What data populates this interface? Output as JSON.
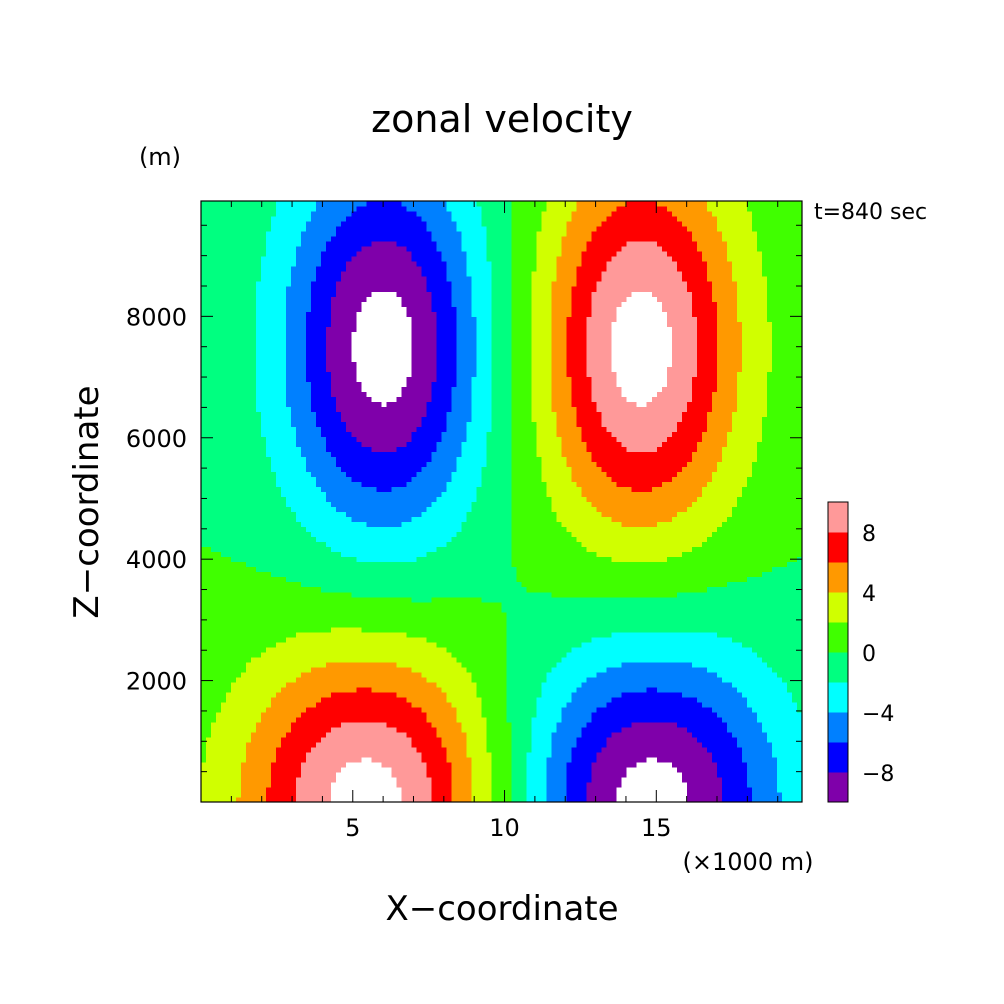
{
  "chart_data": {
    "type": "heatmap",
    "subtype": "filled-contour",
    "title": "zonal velocity",
    "annotation": "t=840 sec",
    "xlabel": "X−coordinate",
    "xunit": "(×1000 m)",
    "ylabel": "Z−coordinate",
    "yunit": "(m)",
    "xlim": [
      0,
      19.8
    ],
    "ylim": [
      0,
      9900
    ],
    "xticks": [
      5,
      10,
      15
    ],
    "yticks": [
      2000,
      4000,
      6000,
      8000
    ],
    "x_tick_labels": [
      "5",
      "10",
      "15"
    ],
    "y_tick_labels": [
      "2000",
      "4000",
      "6000",
      "8000"
    ],
    "color_levels": [
      -10,
      -8,
      -6,
      -4,
      -2,
      0,
      2,
      4,
      6,
      8,
      10
    ],
    "colorbar_tick_labels": [
      "8",
      "4",
      "0",
      "−4",
      "−8"
    ],
    "colorbar_tick_values": [
      8,
      4,
      0,
      -4,
      -8
    ],
    "colors": [
      "#7f00aa",
      "#0000ff",
      "#0080ff",
      "#00ffff",
      "#00ff80",
      "#40ff00",
      "#d0ff00",
      "#ff9900",
      "#ff0000",
      "#ff9999"
    ],
    "over_color": "#ffffff",
    "under_color": "#ffffff",
    "field_features": [
      {
        "x": 6.0,
        "z": 7500,
        "u": -11,
        "label": "upper negative core"
      },
      {
        "x": 14.5,
        "z": 7500,
        "u": 11,
        "label": "upper positive core"
      },
      {
        "x": 5.5,
        "z": 0,
        "u": 11,
        "label": "lower positive core"
      },
      {
        "x": 14.8,
        "z": 0,
        "u": -11,
        "label": "lower negative core"
      }
    ],
    "grid": false
  }
}
